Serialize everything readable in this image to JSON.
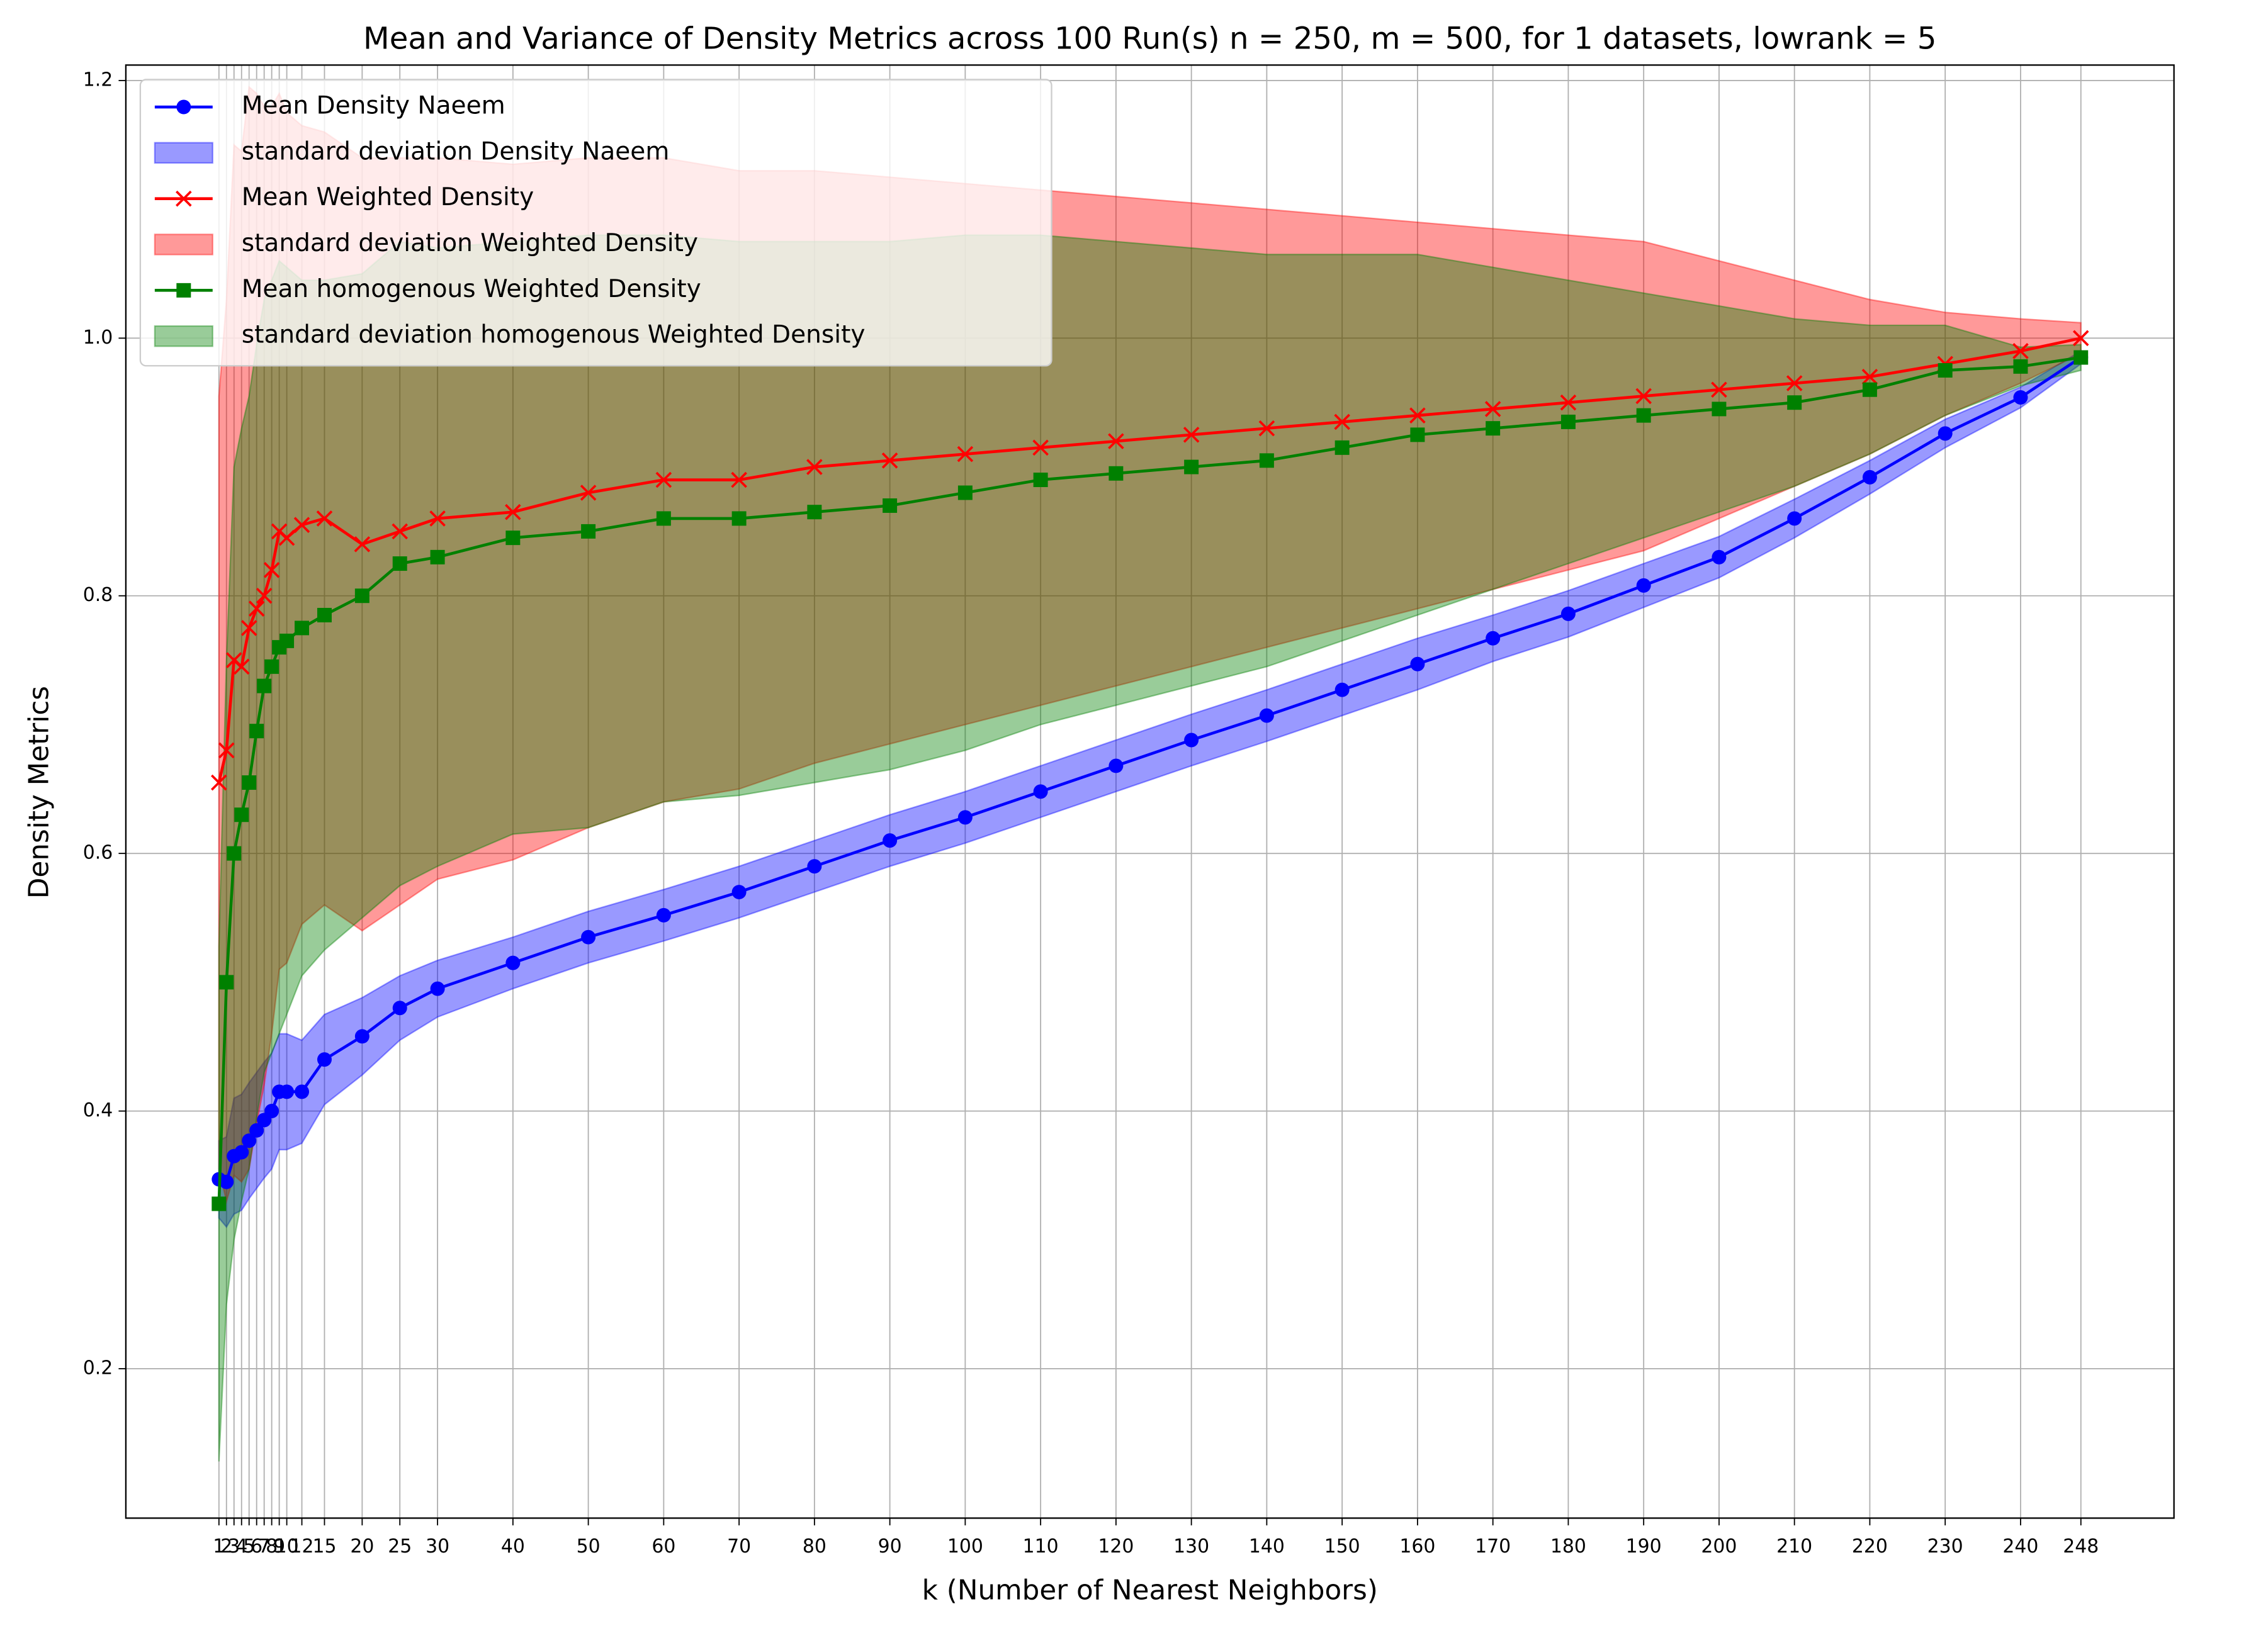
{
  "chart_data": {
    "type": "line",
    "title": "Mean and Variance of Density Metrics across 100 Run(s) n  = 250, m  = 500, for 1 datasets, lowrank = 5",
    "x_label": "k (Number of Nearest Neighbors)",
    "y_label": "Density Metrics",
    "x": [
      1,
      2,
      3,
      4,
      5,
      6,
      7,
      8,
      9,
      10,
      12,
      15,
      20,
      25,
      30,
      40,
      50,
      60,
      70,
      80,
      90,
      100,
      110,
      120,
      130,
      140,
      150,
      160,
      170,
      180,
      190,
      200,
      210,
      220,
      230,
      240,
      248
    ],
    "xlim": [
      -11.35,
      260.35
    ],
    "xticks": [
      1,
      2,
      3,
      4,
      5,
      6,
      7,
      8,
      9,
      10,
      12,
      15,
      20,
      25,
      30,
      40,
      50,
      60,
      70,
      80,
      90,
      100,
      110,
      120,
      130,
      140,
      150,
      160,
      170,
      180,
      190,
      200,
      210,
      220,
      230,
      240,
      248
    ],
    "ylim": [
      0.084,
      1.212
    ],
    "yticks": [
      0.2,
      0.4,
      0.6,
      0.8,
      {
        "value": 1,
        "label": "1.0"
      },
      1.2
    ],
    "grid": true,
    "legend": "upper left",
    "series": [
      {
        "name": "Mean Density Naeem",
        "color": "#0000ff",
        "marker": "circle",
        "values": [
          0.347,
          0.345,
          0.365,
          0.368,
          0.377,
          0.385,
          0.393,
          0.4,
          0.415,
          0.415,
          0.415,
          0.44,
          0.458,
          0.48,
          0.495,
          0.515,
          0.535,
          0.552,
          0.57,
          0.59,
          0.61,
          0.628,
          0.648,
          0.668,
          0.688,
          0.707,
          0.727,
          0.747,
          0.767,
          0.786,
          0.808,
          0.83,
          0.86,
          0.892,
          0.926,
          0.954,
          0.985
        ],
        "std_name": "standard deviation Density Naeem",
        "std_color": "#0000ff",
        "std": [
          0.03,
          0.035,
          0.045,
          0.045,
          0.045,
          0.045,
          0.045,
          0.045,
          0.045,
          0.045,
          0.04,
          0.035,
          0.03,
          0.025,
          0.022,
          0.02,
          0.02,
          0.02,
          0.02,
          0.02,
          0.02,
          0.02,
          0.02,
          0.02,
          0.02,
          0.02,
          0.02,
          0.02,
          0.018,
          0.018,
          0.017,
          0.016,
          0.015,
          0.013,
          0.011,
          0.008,
          0.005
        ]
      },
      {
        "name": "Mean Weighted Density",
        "color": "#ff0000",
        "marker": "x",
        "values": [
          0.655,
          0.68,
          0.75,
          0.745,
          0.775,
          0.79,
          0.8,
          0.82,
          0.85,
          0.845,
          0.855,
          0.86,
          0.84,
          0.85,
          0.86,
          0.865,
          0.88,
          0.89,
          0.89,
          0.9,
          0.905,
          0.91,
          0.915,
          0.92,
          0.925,
          0.93,
          0.935,
          0.94,
          0.945,
          0.95,
          0.955,
          0.96,
          0.965,
          0.97,
          0.98,
          0.99,
          1.0
        ],
        "std_name": "standard deviation Weighted Density",
        "std_color": "#ff0000",
        "std": [
          0.3,
          0.35,
          0.4,
          0.4,
          0.42,
          0.4,
          0.38,
          0.36,
          0.34,
          0.33,
          0.31,
          0.3,
          0.3,
          0.29,
          0.28,
          0.27,
          0.26,
          0.25,
          0.24,
          0.23,
          0.22,
          0.21,
          0.2,
          0.19,
          0.18,
          0.17,
          0.16,
          0.15,
          0.14,
          0.13,
          0.12,
          0.1,
          0.08,
          0.06,
          0.04,
          0.025,
          0.012
        ]
      },
      {
        "name": "Mean homogenous Weighted Density",
        "color": "#008000",
        "marker": "square",
        "values": [
          0.328,
          0.5,
          0.6,
          0.63,
          0.655,
          0.695,
          0.73,
          0.745,
          0.76,
          0.765,
          0.775,
          0.785,
          0.8,
          0.825,
          0.83,
          0.845,
          0.85,
          0.86,
          0.86,
          0.865,
          0.87,
          0.88,
          0.89,
          0.895,
          0.9,
          0.905,
          0.915,
          0.925,
          0.93,
          0.935,
          0.94,
          0.945,
          0.95,
          0.96,
          0.975,
          0.978,
          0.985
        ],
        "std_name": "standard deviation homogenous Weighted Density",
        "std_color": "#008000",
        "std": [
          0.2,
          0.25,
          0.3,
          0.3,
          0.3,
          0.3,
          0.3,
          0.3,
          0.3,
          0.29,
          0.27,
          0.26,
          0.25,
          0.25,
          0.24,
          0.23,
          0.23,
          0.22,
          0.215,
          0.21,
          0.205,
          0.2,
          0.19,
          0.18,
          0.17,
          0.16,
          0.15,
          0.14,
          0.125,
          0.11,
          0.095,
          0.08,
          0.065,
          0.05,
          0.035,
          0.015,
          0.01
        ]
      }
    ]
  }
}
